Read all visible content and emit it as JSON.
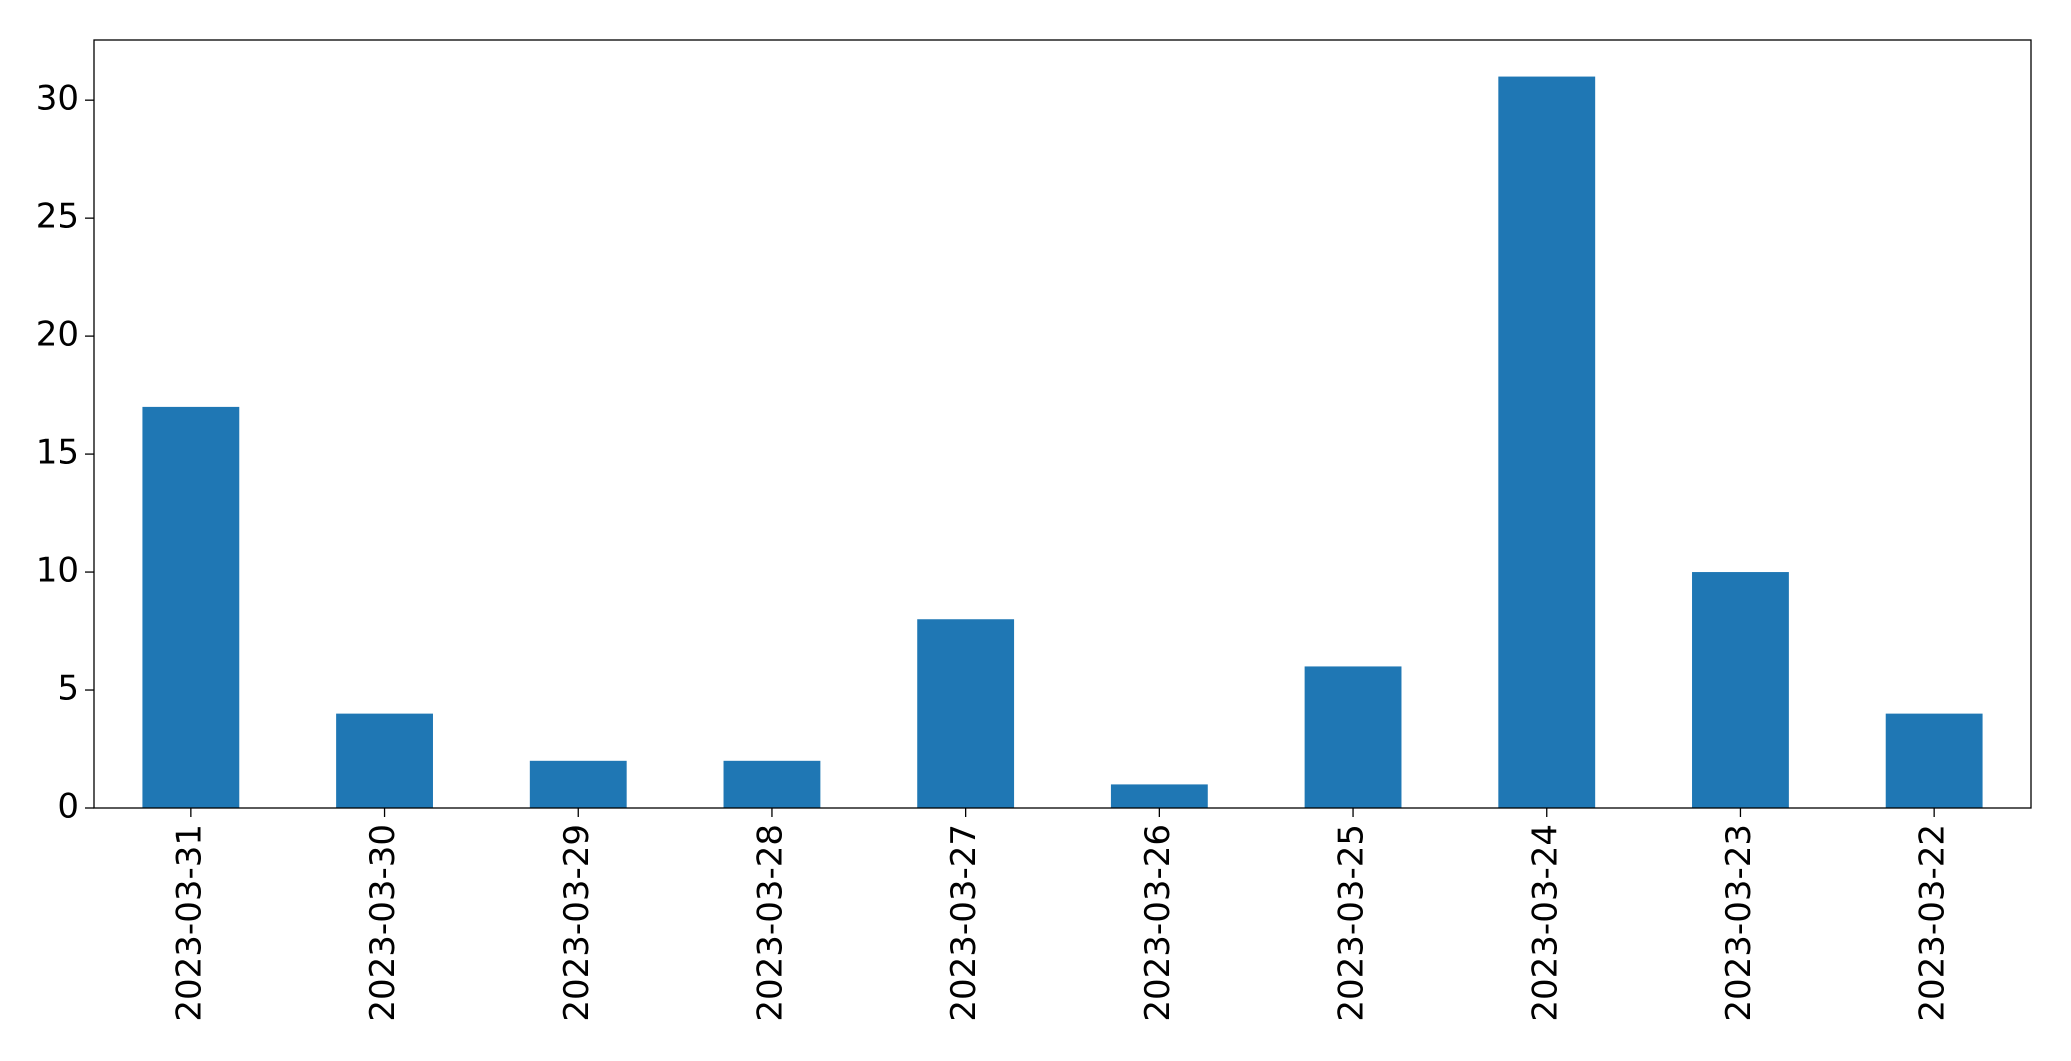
{
  "chart_data": {
    "type": "bar",
    "categories": [
      "2023-03-31",
      "2023-03-30",
      "2023-03-29",
      "2023-03-28",
      "2023-03-27",
      "2023-03-26",
      "2023-03-25",
      "2023-03-24",
      "2023-03-23",
      "2023-03-22"
    ],
    "values": [
      17,
      4,
      2,
      2,
      8,
      1,
      6,
      31,
      10,
      4
    ],
    "color": "#1f77b4",
    "ylim": [
      0,
      32.55
    ],
    "yticks": [
      0,
      5,
      10,
      15,
      20,
      25,
      30
    ],
    "grid": false
  }
}
